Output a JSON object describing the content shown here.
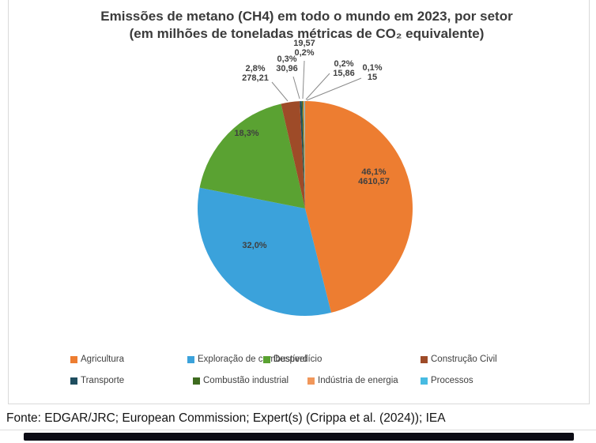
{
  "title": {
    "line1": "Emissões de metano (CH4) em todo o mundo em 2023, por setor",
    "line2": "(em milhões de toneladas métricas de CO₂ equivalente)"
  },
  "chart_data": {
    "type": "pie",
    "title": "Emissões de metano (CH4) em todo o mundo em 2023, por setor (em milhões de toneladas métricas de CO₂ equivalente)",
    "unit": "milhões de toneladas métricas de CO₂ equivalente",
    "legend_position": "bottom",
    "slices": [
      {
        "label": "Agricultura",
        "pct": 46.1,
        "pct_label": "46,1%",
        "value": 4610.57,
        "value_label": "4610,57",
        "color": "#ED7D31"
      },
      {
        "label": "Exploração de combustível",
        "pct": 32.0,
        "pct_label": "32,0%",
        "color": "#3BA2DB"
      },
      {
        "label": "Desperdício",
        "pct": 18.3,
        "pct_label": "18,3%",
        "color": "#5AA232"
      },
      {
        "label": "Construção Civil",
        "pct": 2.8,
        "pct_label": "2,8%",
        "value": 278.21,
        "value_label": "278,21",
        "color": "#9E4B28"
      },
      {
        "label": "Transporte",
        "pct": 0.3,
        "pct_label": "0,3%",
        "value": 30.96,
        "value_label": "30,96",
        "color": "#1F4E5F"
      },
      {
        "label": "Combustão industrial",
        "pct": 0.2,
        "pct_label": "0,2%",
        "value": 19.57,
        "value_label": "19,57",
        "color": "#3E6B1F"
      },
      {
        "label": "Indústria de energia",
        "pct": 0.2,
        "pct_label": "0,2%",
        "value": 15.86,
        "value_label": "15,86",
        "color": "#F1975A"
      },
      {
        "label": "Processos",
        "pct": 0.1,
        "pct_label": "0,1%",
        "value": 15,
        "value_label": "15",
        "color": "#47BBE2"
      }
    ]
  },
  "footer": {
    "source": "Fonte: EDGAR/JRC; European Commission; Expert(s) (Crippa et al. (2024)); IEA"
  }
}
